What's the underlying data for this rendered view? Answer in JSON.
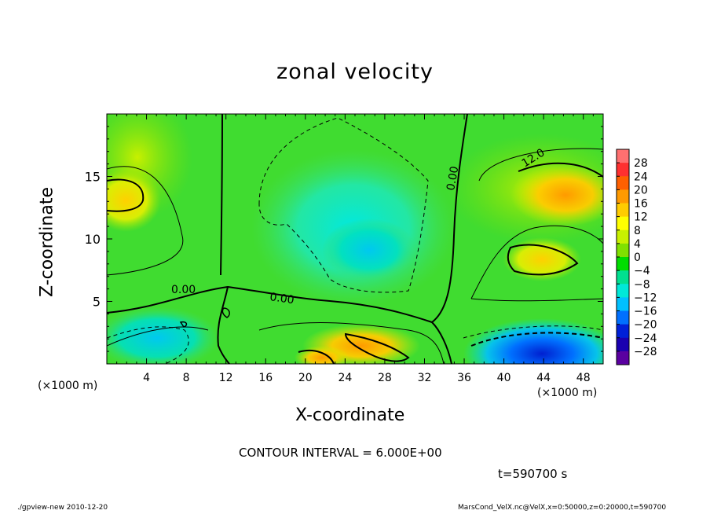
{
  "chart_data": {
    "type": "heatmap",
    "title": "zonal velocity",
    "xlabel": "X-coordinate",
    "ylabel": "Z-coordinate",
    "x_unit": "(×1000 m)",
    "x_unit_right": "(×1000 m)",
    "xlim": [
      0,
      50
    ],
    "ylim": [
      0,
      20
    ],
    "x_ticks": [
      "4",
      "8",
      "12",
      "16",
      "20",
      "24",
      "28",
      "32",
      "36",
      "40",
      "44",
      "48"
    ],
    "y_ticks": [
      "5",
      "10",
      "15"
    ],
    "colorbar": {
      "labels": [
        "28",
        "24",
        "20",
        "16",
        "12",
        "8",
        "4",
        "0",
        "−4",
        "−8",
        "−12",
        "−16",
        "−20",
        "−24",
        "−28"
      ],
      "colors": [
        "#ff7070",
        "#ff3030",
        "#ff6000",
        "#ff9a00",
        "#ffcc00",
        "#ffff00",
        "#c8f000",
        "#80e000",
        "#00dd00",
        "#00e090",
        "#00e8d8",
        "#00c0ff",
        "#0070ff",
        "#0020d8",
        "#1a00b0",
        "#5a00a0"
      ]
    },
    "contour_labels": [
      "0.00",
      "0.00",
      "0.00",
      "12.0"
    ],
    "contour_interval_text": "CONTOUR INTERVAL = 6.000E+00",
    "time_text": "t=590700 s",
    "grid": false
  },
  "footer": {
    "left": "./gpview-new  2010-12-20",
    "right": "MarsCond_VelX.nc@VelX,x=0:50000,z=0:20000,t=590700"
  }
}
